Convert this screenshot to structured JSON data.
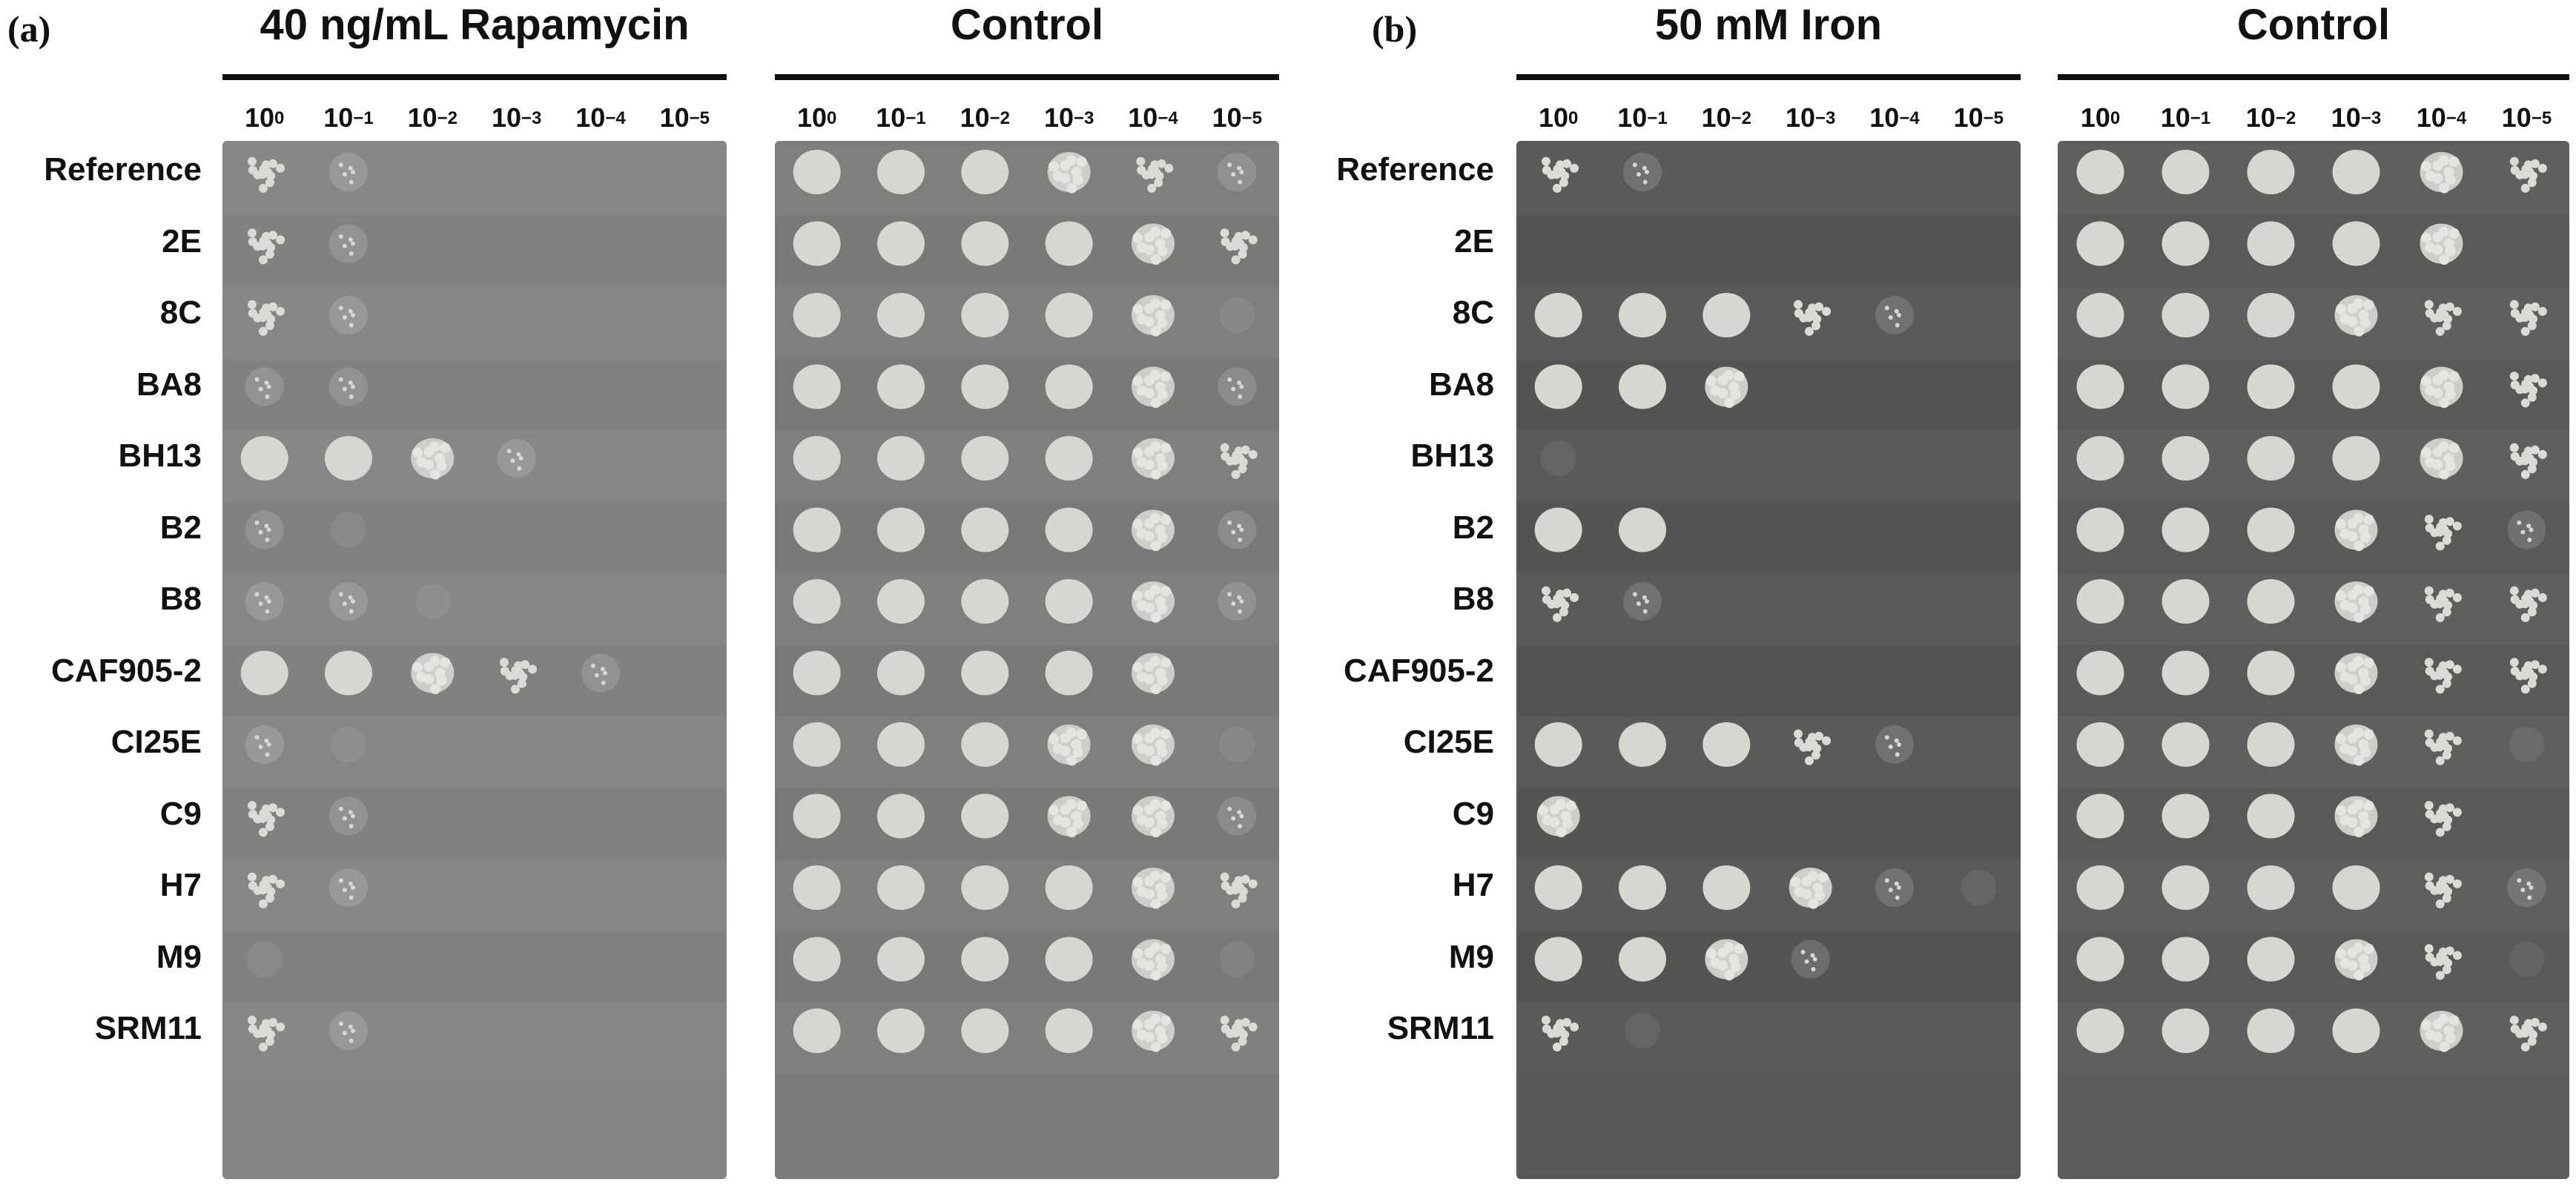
{
  "figure": {
    "panels": [
      {
        "letter": "(a)",
        "conditions": [
          {
            "title": "40 ng/mL Rapamycin",
            "plate_color": "#858585",
            "growth": [
              [
                3,
                2,
                0,
                0,
                0,
                0
              ],
              [
                3,
                2,
                0,
                0,
                0,
                0
              ],
              [
                3,
                2,
                0,
                0,
                0,
                0
              ],
              [
                2,
                2,
                0,
                0,
                0,
                0
              ],
              [
                5,
                5,
                4,
                2,
                0,
                0
              ],
              [
                2,
                1,
                0,
                0,
                0,
                0
              ],
              [
                2,
                2,
                1,
                0,
                0,
                0
              ],
              [
                5,
                5,
                4,
                3,
                2,
                0
              ],
              [
                2,
                1,
                0,
                0,
                0,
                0
              ],
              [
                3,
                2,
                0,
                0,
                0,
                0
              ],
              [
                3,
                2,
                0,
                0,
                0,
                0
              ],
              [
                1,
                0,
                0,
                0,
                0,
                0
              ],
              [
                3,
                2,
                0,
                0,
                0,
                0
              ]
            ]
          },
          {
            "title": "Control",
            "plate_color": "#7c7c7c",
            "growth": [
              [
                5,
                5,
                5,
                4,
                3,
                2
              ],
              [
                5,
                5,
                5,
                5,
                4,
                3
              ],
              [
                5,
                5,
                5,
                5,
                4,
                1
              ],
              [
                5,
                5,
                5,
                5,
                4,
                2
              ],
              [
                5,
                5,
                5,
                5,
                4,
                3
              ],
              [
                5,
                5,
                5,
                5,
                4,
                2
              ],
              [
                5,
                5,
                5,
                5,
                4,
                2
              ],
              [
                5,
                5,
                5,
                5,
                4,
                0
              ],
              [
                5,
                5,
                5,
                4,
                4,
                1
              ],
              [
                5,
                5,
                5,
                4,
                4,
                2
              ],
              [
                5,
                5,
                5,
                5,
                4,
                3
              ],
              [
                5,
                5,
                5,
                5,
                4,
                1
              ],
              [
                5,
                5,
                5,
                5,
                4,
                3
              ]
            ]
          }
        ]
      },
      {
        "letter": "(b)",
        "conditions": [
          {
            "title": "50 mM Iron",
            "plate_color": "#575757",
            "growth": [
              [
                3,
                2,
                0,
                0,
                0,
                0
              ],
              [
                0,
                0,
                0,
                0,
                0,
                0
              ],
              [
                5,
                5,
                5,
                3,
                2,
                0
              ],
              [
                5,
                5,
                4,
                0,
                0,
                0
              ],
              [
                1,
                0,
                0,
                0,
                0,
                0
              ],
              [
                5,
                5,
                0,
                0,
                0,
                0
              ],
              [
                3,
                2,
                0,
                0,
                0,
                0
              ],
              [
                0,
                0,
                0,
                0,
                0,
                0
              ],
              [
                5,
                5,
                5,
                3,
                2,
                0
              ],
              [
                4,
                0,
                0,
                0,
                0,
                0
              ],
              [
                5,
                5,
                5,
                4,
                2,
                1
              ],
              [
                5,
                5,
                4,
                2,
                0,
                0
              ],
              [
                3,
                1,
                0,
                0,
                0,
                0
              ]
            ]
          },
          {
            "title": "Control",
            "plate_color": "#5c5c5c",
            "growth": [
              [
                5,
                5,
                5,
                5,
                4,
                3
              ],
              [
                5,
                5,
                5,
                5,
                4,
                0
              ],
              [
                5,
                5,
                5,
                4,
                3,
                3
              ],
              [
                5,
                5,
                5,
                5,
                4,
                3
              ],
              [
                5,
                5,
                5,
                5,
                4,
                3
              ],
              [
                5,
                5,
                5,
                4,
                3,
                2
              ],
              [
                5,
                5,
                5,
                4,
                3,
                3
              ],
              [
                5,
                5,
                5,
                4,
                3,
                3
              ],
              [
                5,
                5,
                5,
                4,
                3,
                1
              ],
              [
                5,
                5,
                5,
                4,
                3,
                0
              ],
              [
                5,
                5,
                5,
                5,
                3,
                2
              ],
              [
                5,
                5,
                5,
                4,
                3,
                1
              ],
              [
                5,
                5,
                5,
                5,
                4,
                3
              ]
            ]
          }
        ]
      }
    ],
    "dilutions": [
      {
        "base": "10",
        "exp": "0"
      },
      {
        "base": "10",
        "exp": "−1"
      },
      {
        "base": "10",
        "exp": "−2"
      },
      {
        "base": "10",
        "exp": "−3"
      },
      {
        "base": "10",
        "exp": "−4"
      },
      {
        "base": "10",
        "exp": "−5"
      }
    ],
    "strains": [
      "Reference",
      "2E",
      "8C",
      "BA8",
      "BH13",
      "B2",
      "B8",
      "CAF905-2",
      "CI25E",
      "C9",
      "H7",
      "M9",
      "SRM11"
    ]
  }
}
